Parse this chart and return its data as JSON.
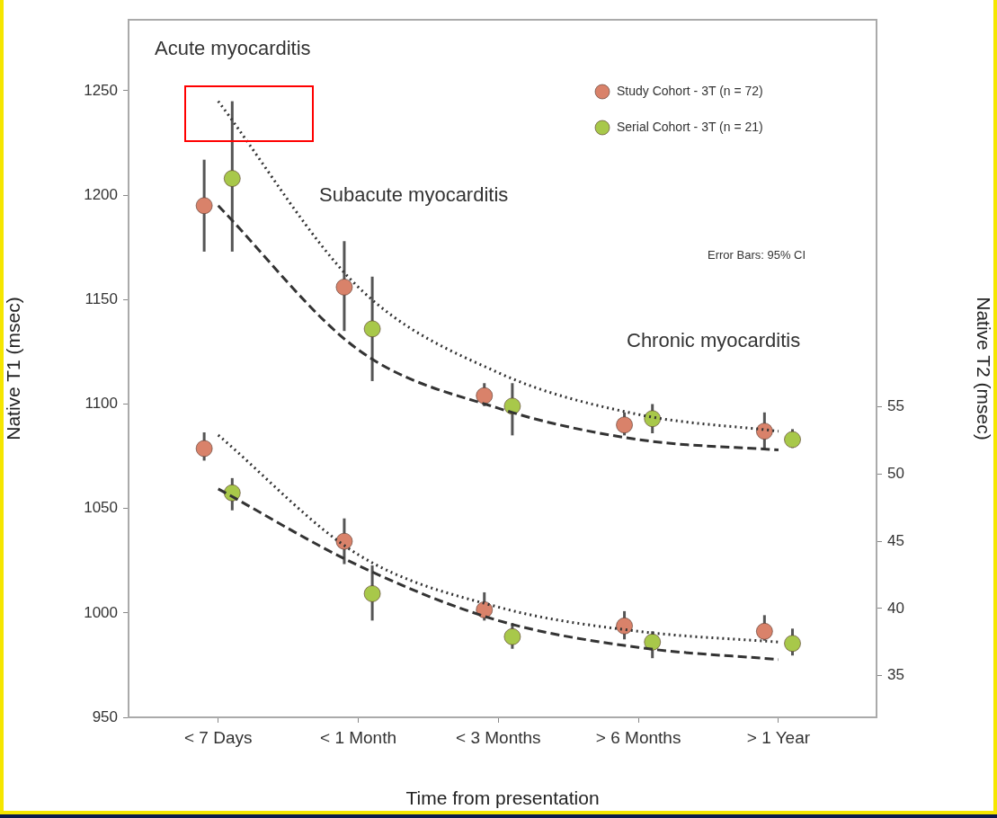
{
  "chart_data": {
    "type": "scatter",
    "xlabel": "Time from presentation",
    "ylabel": "Native T1 (msec)",
    "y2label": "Native T2 (msec)",
    "categories": [
      "< 7 Days",
      "< 1 Month",
      "< 3 Months",
      "> 6 Months",
      "> 1 Year"
    ],
    "ylim": [
      950,
      1284
    ],
    "yticks": [
      950,
      1000,
      1050,
      1100,
      1150,
      1200,
      1250
    ],
    "y2lim": [
      31.9,
      83.8
    ],
    "y2ticks": [
      35,
      40,
      45,
      50,
      55
    ],
    "legend": "top right",
    "annotations": [
      "Acute myocarditis",
      "Subacute myocarditis",
      "Chronic myocarditis",
      "Error Bars: 95% CI"
    ],
    "series": [
      {
        "name": "Study Cohort - 3T (n = 72)",
        "type": "scatter",
        "marker": "circle",
        "color": "#d9826a",
        "values": [
          1195,
          1156,
          1104,
          1090,
          1087
        ],
        "errors": [
          [
            1173,
            1217
          ],
          [
            1135,
            1178
          ],
          [
            1099,
            1110
          ],
          [
            1085,
            1096
          ],
          [
            1078,
            1096
          ]
        ]
      },
      {
        "name": "Serial Cohort - 3T (n = 21)",
        "type": "scatter",
        "marker": "circle",
        "color": "#a8c84a",
        "values": [
          1208,
          1136,
          1099,
          1093,
          1083
        ],
        "errors": [
          [
            1173,
            1245
          ],
          [
            1111,
            1161
          ],
          [
            1085,
            1110
          ],
          [
            1086,
            1100
          ],
          [
            1079,
            1088
          ]
        ]
      },
      {
        "type": "scatter",
        "axis": "y2",
        "marker": "circle",
        "color": "#d9826a",
        "values": [
          51.9,
          45,
          39.9,
          38.7,
          38.3
        ],
        "errors": [
          [
            51,
            53.1
          ],
          [
            43.3,
            46.7
          ],
          [
            39.1,
            41.2
          ],
          [
            37.7,
            39.8
          ],
          [
            37.6,
            39.5
          ]
        ]
      },
      {
        "type": "scatter",
        "axis": "y2",
        "marker": "circle",
        "color": "#a8c84a",
        "values": [
          48.6,
          41.1,
          37.9,
          37.5,
          37.4
        ],
        "errors": [
          [
            47.3,
            49.7
          ],
          [
            39.1,
            43.2
          ],
          [
            37,
            38.9
          ],
          [
            36.3,
            38.3
          ],
          [
            36.5,
            38.5
          ]
        ]
      },
      {
        "type": "line",
        "marker": "none",
        "line_style": "dotted",
        "color": "#333333",
        "values": [
          1245,
          1156,
          1115,
          1095,
          1087
        ]
      },
      {
        "type": "line",
        "marker": "none",
        "line_style": "dashed",
        "color": "#333333",
        "values": [
          1195,
          1126,
          1098,
          1083,
          1078
        ]
      },
      {
        "type": "line",
        "marker": "none",
        "axis": "y2",
        "line_style": "dotted",
        "color": "#333333",
        "values": [
          52.9,
          44,
          40.1,
          38.3,
          37.5
        ]
      },
      {
        "type": "line",
        "marker": "none",
        "axis": "y2",
        "line_style": "dashed",
        "color": "#333333",
        "values": [
          48.9,
          43.2,
          39.1,
          37.1,
          36.2
        ]
      }
    ]
  }
}
